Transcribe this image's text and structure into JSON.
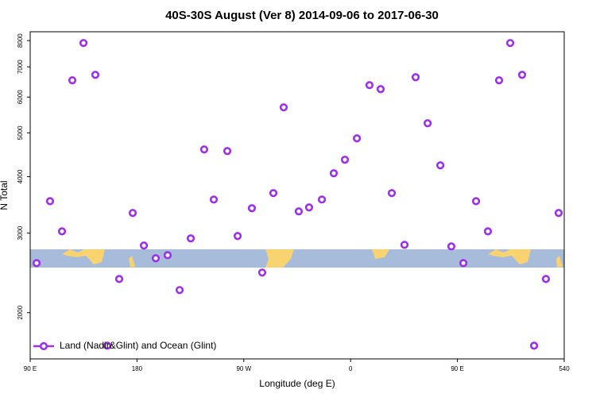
{
  "chart_data": {
    "type": "scatter",
    "title": "40S-30S August (Ver 8)   2014-09-06 to 2017-06-30",
    "x_label": "Longitude (deg E)",
    "y_label": "N Total",
    "yscale": "log",
    "xlim": [
      90,
      540
    ],
    "ylim": [
      1580,
      8370
    ],
    "xticks": [
      {
        "value": 90,
        "label": "90 E"
      },
      180,
      {
        "value": 270,
        "label": "90 W"
      },
      {
        "value": 360,
        "label": "0"
      },
      {
        "value": 450,
        "label": "90 E"
      },
      540
    ],
    "yticks": [
      2000,
      3000,
      4000,
      5000,
      6000,
      7000,
      8000
    ],
    "legend": "bottom-left",
    "series": [
      {
        "name": "Land (Nadir&Glint) and Ocean (Glint)",
        "color": "#9b30e8",
        "x": [
          95.4,
          106.7,
          116.8,
          125.5,
          134.9,
          144.9,
          155.0,
          165.0,
          176.4,
          185.8,
          195.8,
          205.8,
          215.9,
          225.3,
          236.6,
          244.7,
          256.1,
          264.8,
          276.8,
          285.5,
          294.9,
          303.6,
          316.3,
          325.0,
          335.8,
          345.8,
          355.2,
          365.3,
          375.9,
          385.3,
          394.7,
          405.4,
          414.8,
          424.9,
          435.6,
          444.9,
          455.0,
          465.7,
          475.7,
          485.1,
          494.5,
          504.5,
          514.6,
          524.6,
          535.3
        ],
        "values": [
          2574,
          3530,
          3027,
          6535,
          7903,
          6720,
          1690,
          2374,
          3323,
          2815,
          2639,
          2681,
          2244,
          2920,
          4594,
          3559,
          4557,
          2955,
          3405,
          2453,
          3678,
          5694,
          3351,
          3419,
          3559,
          4069,
          4360,
          4862,
          6377,
          6248,
          3678,
          2826,
          6640,
          5251,
          4237,
          2803,
          2574,
          3530,
          3027,
          6535,
          7903,
          6720,
          1690,
          2374,
          3323
        ]
      }
    ]
  }
}
